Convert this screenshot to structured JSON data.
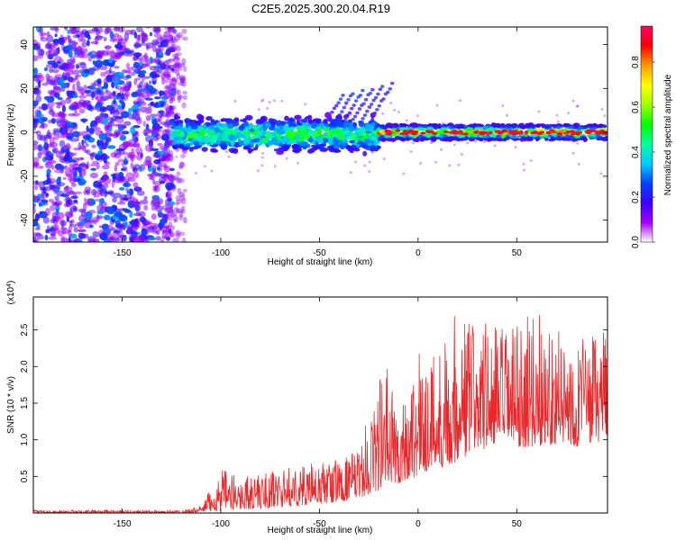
{
  "title": "C2E5.2025.300.20.04.R19",
  "chart_data": [
    {
      "type": "heatmap",
      "xlabel": "Height of straight line (km)",
      "ylabel": "Frequency (Hz)",
      "xlim": [
        -195,
        96
      ],
      "ylim": [
        -50,
        48
      ],
      "xticks": [
        -150,
        -100,
        -50,
        0,
        50
      ],
      "xtick_labels": [
        "-150",
        "-100",
        "-50",
        "0",
        "50"
      ],
      "yticks": [
        -40,
        -20,
        0,
        20,
        40
      ],
      "ytick_labels": [
        "-40",
        "-20",
        "0",
        "20",
        "40"
      ],
      "colorbar": {
        "label": "Normalized spectral amplitude",
        "range": [
          0,
          0.96
        ],
        "ticks": [
          0.0,
          0.2,
          0.4,
          0.6,
          0.8
        ],
        "tick_labels": [
          "0.0",
          "0.2",
          "0.4",
          "0.6",
          "0.8"
        ],
        "colors": [
          "#ffffff",
          "#a600ff",
          "#3c00ff",
          "#0044ff",
          "#00ccff",
          "#00ffa0",
          "#00ff00",
          "#a0ff00",
          "#ffff00",
          "#ff9900",
          "#ff0000",
          "#ff0066"
        ]
      },
      "regions": [
        {
          "x": [
            -195,
            -125
          ],
          "freq": [
            -50,
            48
          ],
          "amplitude": "low (0.1-0.3), broadband noise"
        },
        {
          "x": [
            -125,
            -20
          ],
          "freq": [
            -12,
            8
          ],
          "amplitude": "0.2-0.5, band centred near 0 Hz"
        },
        {
          "x": [
            -45,
            -20
          ],
          "freq": [
            0,
            22
          ],
          "amplitude": "0.2-0.3, rising streaks"
        },
        {
          "x": [
            -20,
            96
          ],
          "freq": [
            -4,
            4
          ],
          "amplitude": "0.4-0.95, narrow band near 0 Hz"
        }
      ]
    },
    {
      "type": "line",
      "xlabel": "Height of straight line (km)",
      "ylabel": "SNR (10 * v/v)",
      "yscale_label": "(x10",
      "yscale_exp": "4",
      "xlim": [
        -195,
        96
      ],
      "ylim": [
        0,
        2.95
      ],
      "xticks": [
        -150,
        -100,
        -50,
        0,
        50
      ],
      "xtick_labels": [
        "-150",
        "-100",
        "-50",
        "0",
        "50"
      ],
      "yticks": [
        0.5,
        1.0,
        1.5,
        2.0,
        2.5
      ],
      "ytick_labels": [
        "0.5",
        "1.0",
        "1.5",
        "2.0",
        "2.5"
      ],
      "series_color": "#e8282b",
      "envelope": {
        "x": [
          -195,
          -120,
          -110,
          -100,
          -90,
          -80,
          -70,
          -60,
          -50,
          -40,
          -30,
          -20,
          -15,
          -10,
          0,
          10,
          20,
          30,
          40,
          50,
          60,
          70,
          80,
          96
        ],
        "y_low": [
          0.0,
          0.0,
          0.01,
          0.03,
          0.05,
          0.06,
          0.08,
          0.1,
          0.12,
          0.15,
          0.2,
          0.3,
          0.35,
          0.4,
          0.5,
          0.6,
          0.7,
          0.85,
          0.9,
          0.9,
          0.9,
          0.95,
          0.9,
          1.0
        ],
        "y_high": [
          0.04,
          0.04,
          0.1,
          0.6,
          0.5,
          0.55,
          0.6,
          0.65,
          0.7,
          0.75,
          0.85,
          1.9,
          2.05,
          1.4,
          2.2,
          2.3,
          2.85,
          2.7,
          2.6,
          2.55,
          2.8,
          2.5,
          2.4,
          2.5
        ]
      }
    }
  ]
}
